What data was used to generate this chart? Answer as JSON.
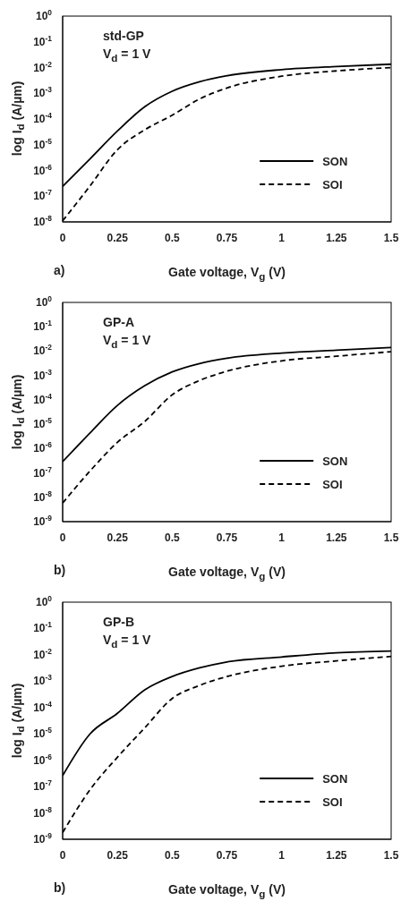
{
  "chart_data": [
    {
      "type": "line",
      "xlabel": "Gate voltage, V$_{g}$ (V)",
      "ylabel": "log I$_{d}$ (A/µm)",
      "annotations": [
        "std-GP",
        "V$_{d}$ = 1 V",
        "a)"
      ],
      "log": "y",
      "legend": "bottom right",
      "grid": false,
      "marker": "none",
      "x": [
        0,
        0.125,
        0.25,
        0.375,
        0.5,
        0.625,
        0.75,
        1,
        1.25,
        1.5
      ],
      "series": [
        {
          "name": "SON",
          "color": "#000000",
          "line_style": "solid",
          "values": [
            2.4e-07,
            2.8e-06,
            3.4e-05,
            0.0003,
            0.0012,
            0.0028,
            0.0048,
            0.0083,
            0.011,
            0.0135
          ]
        },
        {
          "name": "SOI",
          "color": "#000000",
          "line_style": "dashed",
          "values": [
            1.1e-08,
            2.5e-07,
            6.4e-06,
            3.8e-05,
            0.00014,
            0.0006,
            0.0016,
            0.0046,
            0.0074,
            0.01
          ]
        }
      ],
      "xlim": [
        0,
        1.5
      ],
      "xticks": [
        0,
        0.25,
        0.5,
        0.75,
        1,
        1.25,
        1.5
      ],
      "ylim": [
        1e-08,
        1
      ],
      "yticks": [
        {
          "value": 1e-08,
          "label": "10$^{-8}$"
        },
        {
          "value": 1e-07,
          "label": "10$^{-7}$"
        },
        {
          "value": 1e-06,
          "label": "10$^{-6}$"
        },
        {
          "value": 1e-05,
          "label": "10$^{-5}$"
        },
        {
          "value": 0.0001,
          "label": "10$^{-4}$"
        },
        {
          "value": 0.001,
          "label": "10$^{-3}$"
        },
        {
          "value": 0.01,
          "label": "10$^{-2}$"
        },
        {
          "value": 0.1,
          "label": "10$^{-1}$"
        },
        {
          "value": 1,
          "label": "10$^{0}$"
        }
      ]
    },
    {
      "type": "line",
      "xlabel": "Gate voltage, V$_{g}$ (V)",
      "ylabel": "log I$_{d}$ (A/µm)",
      "annotations": [
        "GP-A",
        "V$_{d}$ = 1 V",
        "b)"
      ],
      "log": "y",
      "legend": "bottom right",
      "grid": false,
      "marker": "none",
      "x": [
        0,
        0.125,
        0.25,
        0.375,
        0.5,
        0.625,
        0.75,
        1,
        1.25,
        1.5
      ],
      "series": [
        {
          "name": "SON",
          "color": "#000000",
          "line_style": "solid",
          "values": [
            2.9e-07,
            4.4e-06,
            5.9e-05,
            0.00038,
            0.0014,
            0.0031,
            0.0051,
            0.0083,
            0.011,
            0.014
          ]
        },
        {
          "name": "SOI",
          "color": "#000000",
          "line_style": "dashed",
          "values": [
            5.8e-09,
            1.2e-07,
            1.8e-06,
            1.3e-05,
            0.00016,
            0.00062,
            0.0015,
            0.004,
            0.0062,
            0.0095
          ]
        }
      ],
      "xlim": [
        0,
        1.5
      ],
      "xticks": [
        0,
        0.25,
        0.5,
        0.75,
        1,
        1.25,
        1.5
      ],
      "ylim": [
        1e-09,
        1
      ],
      "yticks": [
        {
          "value": 1e-09,
          "label": "10$^{-9}$"
        },
        {
          "value": 1e-08,
          "label": "10$^{-8}$"
        },
        {
          "value": 1e-07,
          "label": "10$^{-7}$"
        },
        {
          "value": 1e-06,
          "label": "10$^{-6}$"
        },
        {
          "value": 1e-05,
          "label": "10$^{-5}$"
        },
        {
          "value": 0.0001,
          "label": "10$^{-4}$"
        },
        {
          "value": 0.001,
          "label": "10$^{-3}$"
        },
        {
          "value": 0.01,
          "label": "10$^{-2}$"
        },
        {
          "value": 0.1,
          "label": "10$^{-1}$"
        },
        {
          "value": 1,
          "label": "10$^{0}$"
        }
      ]
    },
    {
      "type": "line",
      "xlabel": "Gate voltage, V$_{g}$ (V)",
      "ylabel": "log I$_{d}$ (A/µm)",
      "annotations": [
        "GP-B",
        "V$_{d}$ = 1 V",
        "b)"
      ],
      "log": "y",
      "legend": "bottom right",
      "grid": false,
      "marker": "none",
      "x": [
        0,
        0.125,
        0.25,
        0.375,
        0.5,
        0.625,
        0.75,
        1,
        1.25,
        1.5
      ],
      "series": [
        {
          "name": "SON",
          "color": "#000000",
          "line_style": "solid",
          "values": [
            2.6e-07,
            1e-05,
            6e-05,
            0.00047,
            0.0015,
            0.0032,
            0.0054,
            0.0083,
            0.012,
            0.014
          ]
        },
        {
          "name": "SOI",
          "color": "#000000",
          "line_style": "dashed",
          "values": [
            1.8e-09,
            7.6e-08,
            1.3e-06,
            1.7e-05,
            0.00022,
            0.00069,
            0.0015,
            0.0037,
            0.0059,
            0.0087
          ]
        }
      ],
      "xlim": [
        0,
        1.5
      ],
      "xticks": [
        0,
        0.25,
        0.5,
        0.75,
        1,
        1.25,
        1.5
      ],
      "ylim": [
        1e-09,
        1
      ],
      "yticks": [
        {
          "value": 1e-09,
          "label": "10$^{-9}$"
        },
        {
          "value": 1e-08,
          "label": "10$^{-8}$"
        },
        {
          "value": 1e-07,
          "label": "10$^{-7}$"
        },
        {
          "value": 1e-06,
          "label": "10$^{-6}$"
        },
        {
          "value": 1e-05,
          "label": "10$^{-5}$"
        },
        {
          "value": 0.0001,
          "label": "10$^{-4}$"
        },
        {
          "value": 0.001,
          "label": "10$^{-3}$"
        },
        {
          "value": 0.01,
          "label": "10$^{-2}$"
        },
        {
          "value": 0.1,
          "label": "10$^{-1}$"
        },
        {
          "value": 1,
          "label": "10$^{0}$"
        }
      ]
    }
  ]
}
